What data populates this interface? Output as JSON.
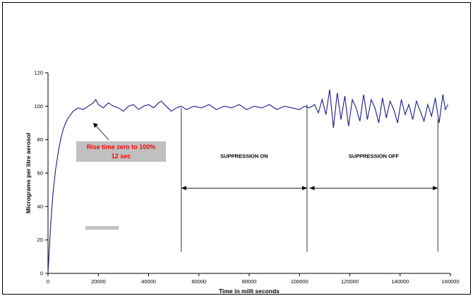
{
  "chart_data": {
    "type": "line",
    "title": "",
    "xlabel": "Time in milli seconds",
    "ylabel": "Micrograms per litre aerosol",
    "xlim": [
      0,
      160000
    ],
    "ylim": [
      0,
      120
    ],
    "x_ticks": [
      0,
      20000,
      40000,
      60000,
      80000,
      100000,
      120000,
      140000,
      160000
    ],
    "x_tick_labels": [
      "0",
      "20000",
      "40000",
      "60000",
      "80000",
      "100000",
      "120000",
      "140000",
      "160000"
    ],
    "y_ticks": [
      0,
      20,
      40,
      60,
      80,
      100,
      120
    ],
    "y_tick_labels": [
      "0",
      "20",
      "40",
      "60",
      "80",
      "100",
      "120"
    ],
    "grid": false,
    "legend": "none",
    "series_color": "#1a1a8c",
    "series": [
      {
        "x": [
          0,
          1000,
          2000,
          3000,
          4000,
          5000,
          6000,
          7000,
          8000,
          9000,
          10000,
          11000,
          12000,
          14000,
          16000,
          18000,
          19000,
          20000,
          22000,
          24000,
          26000,
          28000,
          30000,
          32000,
          34000,
          36000,
          38000,
          40000,
          42000,
          44000,
          45000,
          47000,
          49000,
          51000,
          53000,
          55000,
          58000,
          61000,
          64000,
          67000,
          70000,
          73000,
          76000,
          79000,
          82000,
          85000,
          88000,
          91000,
          94000,
          97000,
          100000,
          102000,
          104000,
          106000,
          107500,
          109000,
          110500,
          112000,
          113500,
          115000,
          116500,
          118000,
          119500,
          121000,
          122500,
          124000,
          125500,
          127000,
          128500,
          130000,
          131500,
          133000,
          134500,
          136000,
          137500,
          139000,
          140500,
          142000,
          143500,
          145000,
          146500,
          148000,
          149500,
          151000,
          152500,
          154000,
          155500,
          157000,
          158000,
          159000
        ],
        "values": [
          0,
          28,
          48,
          62,
          72,
          80,
          86,
          90,
          93,
          95,
          97,
          98,
          99,
          98,
          100,
          102,
          104,
          101,
          99,
          102,
          100,
          99,
          97,
          100,
          101,
          98,
          100,
          101,
          99,
          102,
          103,
          100,
          97,
          99,
          100,
          98,
          100,
          99,
          101,
          98,
          100,
          99,
          101,
          98,
          100,
          99,
          101,
          98,
          100,
          99,
          98,
          100,
          99,
          101,
          96,
          104,
          95,
          110,
          87,
          108,
          92,
          106,
          88,
          104,
          99,
          91,
          107,
          92,
          104,
          99,
          90,
          105,
          93,
          103,
          98,
          90,
          104,
          95,
          101,
          92,
          103,
          97,
          91,
          101,
          94,
          105,
          90,
          107,
          98,
          101
        ]
      }
    ],
    "annotations": [
      {
        "text_line1": "Rise time  zero to 100%",
        "text_line2": "12 sec",
        "text_color": "#ff0000",
        "box_color": "#c0c0c0"
      },
      {
        "text": "SUPPRESSION ON",
        "x_start": 53000,
        "x_end": 103000
      },
      {
        "text": "SUPPRESSION OFF",
        "x_start": 104000,
        "x_end": 155000
      }
    ],
    "gray_bar_color": "#c0c0c0"
  }
}
